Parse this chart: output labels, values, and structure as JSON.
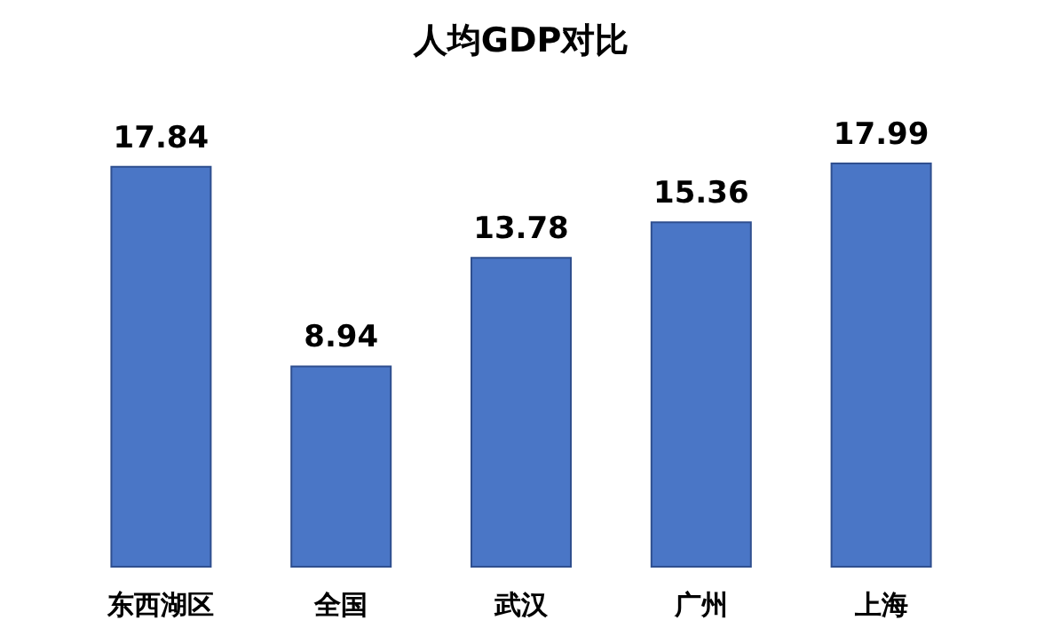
{
  "chart_data": {
    "type": "bar",
    "title": "人均GDP对比",
    "categories": [
      "东西湖区",
      "全国",
      "武汉",
      "广州",
      "上海"
    ],
    "values": [
      17.84,
      8.94,
      13.78,
      15.36,
      17.99
    ],
    "color": "#4a76c6",
    "data_labels": true,
    "tick_labels": "x"
  }
}
